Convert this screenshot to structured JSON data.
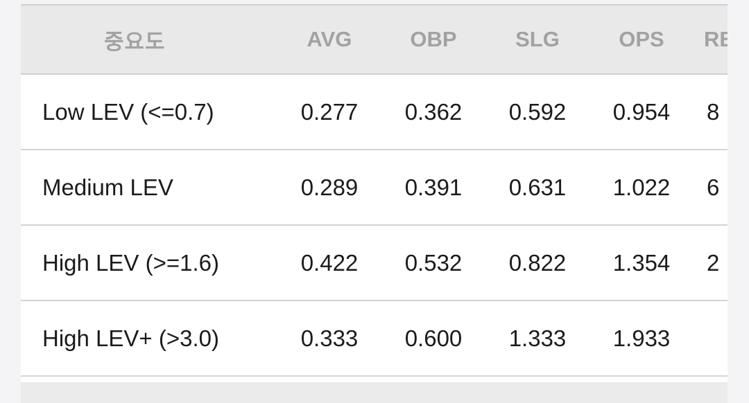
{
  "table": {
    "headers": [
      "중요도",
      "AVG",
      "OBP",
      "SLG",
      "OPS",
      "RBI"
    ],
    "rows": [
      {
        "label": "Low LEV (<=0.7)",
        "values": [
          "0.277",
          "0.362",
          "0.592",
          "0.954",
          "8"
        ]
      },
      {
        "label": "Medium LEV",
        "values": [
          "0.289",
          "0.391",
          "0.631",
          "1.022",
          "6"
        ]
      },
      {
        "label": "High LEV (>=1.6)",
        "values": [
          "0.422",
          "0.532",
          "0.822",
          "1.354",
          "2"
        ]
      },
      {
        "label": "High LEV+ (>3.0)",
        "values": [
          "0.333",
          "0.600",
          "1.333",
          "1.933",
          ""
        ]
      }
    ]
  }
}
